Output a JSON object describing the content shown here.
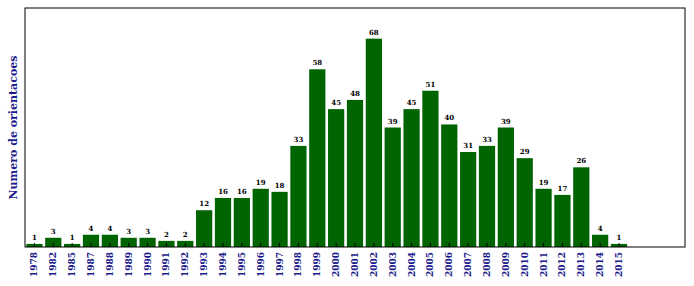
{
  "chart_data": {
    "type": "bar",
    "y_label": "Numero de orientacoes",
    "categories": [
      "1978",
      "1982",
      "1985",
      "1987",
      "1988",
      "1989",
      "1990",
      "1991",
      "1992",
      "1993",
      "1994",
      "1995",
      "1996",
      "1997",
      "1998",
      "1999",
      "2000",
      "2001",
      "2002",
      "2003",
      "2004",
      "2005",
      "2006",
      "2007",
      "2008",
      "2009",
      "2010",
      "2011",
      "2012",
      "2013",
      "2014",
      "2015"
    ],
    "values": [
      1,
      3,
      1,
      4,
      4,
      3,
      3,
      2,
      2,
      12,
      16,
      16,
      19,
      18,
      33,
      58,
      45,
      48,
      68,
      39,
      45,
      51,
      40,
      31,
      33,
      39,
      29,
      19,
      17,
      26,
      4,
      1
    ],
    "color": "#006400",
    "ylim": [
      0,
      78
    ],
    "data_labels": true,
    "tick_labels": "x",
    "grid": false
  }
}
